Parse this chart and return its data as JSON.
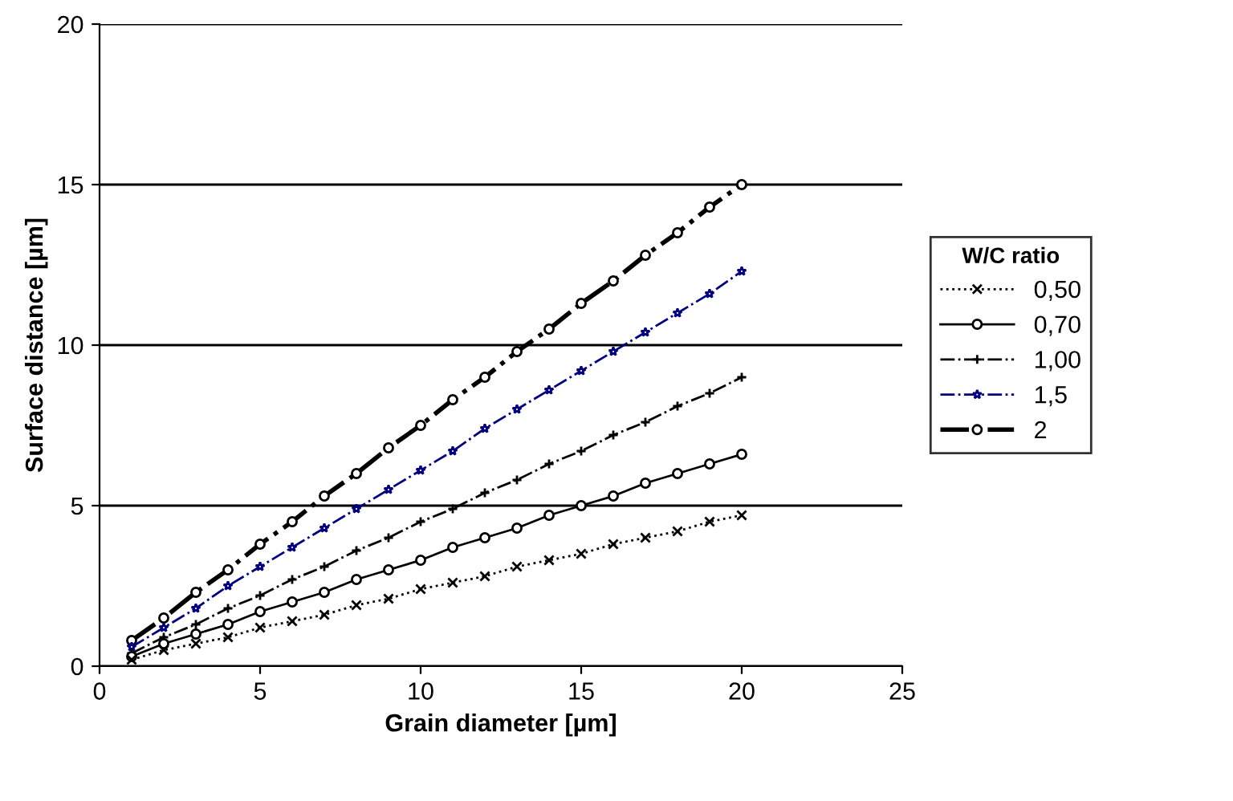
{
  "chart_data": {
    "type": "line",
    "xlabel": "Grain diameter [µm]",
    "ylabel": "Surface distance [µm]",
    "legend_title": "W/C ratio",
    "x": [
      1,
      2,
      3,
      4,
      5,
      6,
      7,
      8,
      9,
      10,
      11,
      12,
      13,
      14,
      15,
      16,
      17,
      18,
      19,
      20
    ],
    "series": [
      {
        "name": "0,50",
        "color": "#000000",
        "marker": "cross",
        "line_style": "dotted",
        "values": [
          0.2,
          0.5,
          0.7,
          0.9,
          1.2,
          1.4,
          1.6,
          1.9,
          2.1,
          2.4,
          2.6,
          2.8,
          3.1,
          3.3,
          3.5,
          3.8,
          4.0,
          4.2,
          4.5,
          4.7
        ]
      },
      {
        "name": "0,70",
        "color": "#000000",
        "marker": "circle",
        "line_style": "solid",
        "values": [
          0.3,
          0.7,
          1.0,
          1.3,
          1.7,
          2.0,
          2.3,
          2.7,
          3.0,
          3.3,
          3.7,
          4.0,
          4.3,
          4.7,
          5.0,
          5.3,
          5.7,
          6.0,
          6.3,
          6.6
        ]
      },
      {
        "name": "1,00",
        "color": "#000000",
        "marker": "plus",
        "line_style": "dashdot",
        "values": [
          0.4,
          0.9,
          1.3,
          1.8,
          2.2,
          2.7,
          3.1,
          3.6,
          4.0,
          4.5,
          4.9,
          5.4,
          5.8,
          6.3,
          6.7,
          7.2,
          7.6,
          8.1,
          8.5,
          9.0
        ]
      },
      {
        "name": "1,5",
        "color": "#000080",
        "marker": "star",
        "line_style": "dashdot",
        "values": [
          0.6,
          1.2,
          1.8,
          2.5,
          3.1,
          3.7,
          4.3,
          4.9,
          5.5,
          6.1,
          6.7,
          7.4,
          8.0,
          8.6,
          9.2,
          9.8,
          10.4,
          11.0,
          11.6,
          12.3
        ]
      },
      {
        "name": "2",
        "color": "#000000",
        "marker": "circle",
        "line_style": "dashdot",
        "values": [
          0.8,
          1.5,
          2.3,
          3.0,
          3.8,
          4.5,
          5.3,
          6.0,
          6.8,
          7.5,
          8.3,
          9.0,
          9.8,
          10.5,
          11.3,
          12.0,
          12.8,
          13.5,
          14.3,
          15.0
        ]
      }
    ],
    "xlim": [
      0,
      25
    ],
    "xticks": [
      0,
      5,
      10,
      15,
      20,
      25
    ],
    "ylim": [
      0,
      20
    ],
    "yticks": [
      0,
      5,
      10,
      15,
      20
    ],
    "grid": "y",
    "legend": "right"
  }
}
